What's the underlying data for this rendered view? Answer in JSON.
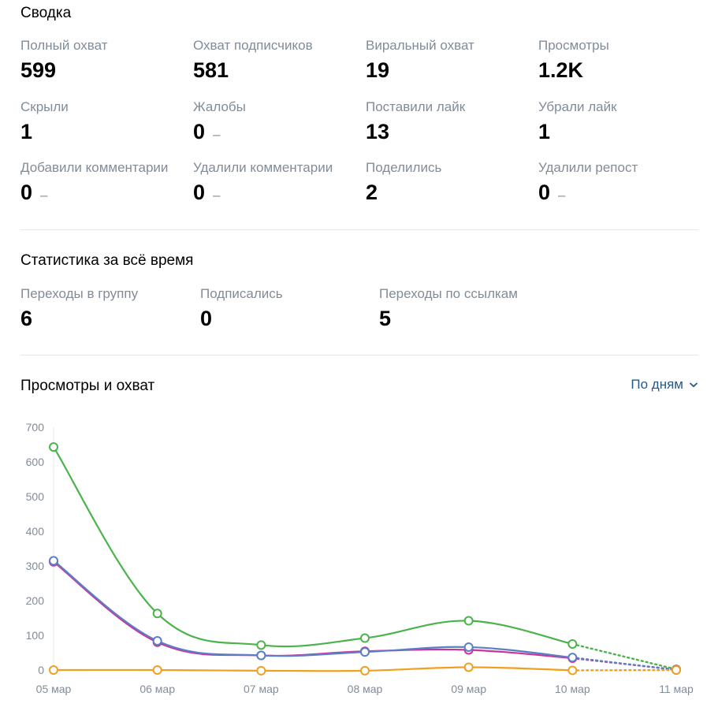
{
  "summary": {
    "title": "Сводка",
    "stats": [
      {
        "label": "Полный охват",
        "value": "599"
      },
      {
        "label": "Охват подписчиков",
        "value": "581"
      },
      {
        "label": "Виральный охват",
        "value": "19"
      },
      {
        "label": "Просмотры",
        "value": "1.2K"
      },
      {
        "label": "Скрыли",
        "value": "1"
      },
      {
        "label": "Жалобы",
        "value": "0",
        "dash": "–"
      },
      {
        "label": "Поставили лайк",
        "value": "13"
      },
      {
        "label": "Убрали лайк",
        "value": "1"
      },
      {
        "label": "Добавили комментарии",
        "value": "0",
        "dash": "–"
      },
      {
        "label": "Удалили комментарии",
        "value": "0",
        "dash": "–"
      },
      {
        "label": "Поделились",
        "value": "2"
      },
      {
        "label": "Удалили репост",
        "value": "0",
        "dash": "–"
      }
    ]
  },
  "alltime": {
    "title": "Статистика за всё время",
    "stats": [
      {
        "label": "Переходы в группу",
        "value": "6"
      },
      {
        "label": "Подписались",
        "value": "0"
      },
      {
        "label": "Переходы по ссылкам",
        "value": "5"
      }
    ]
  },
  "chart_section": {
    "title": "Просмотры и охват",
    "period_label": "По дням"
  },
  "chart_data": {
    "type": "line",
    "title": "",
    "xlabel": "",
    "ylabel": "",
    "categories": [
      "05 мар",
      "06 мар",
      "07 мар",
      "08 мар",
      "09 мар",
      "10 мар",
      "11 мар"
    ],
    "y_ticks": [
      "0",
      "100",
      "200",
      "300",
      "400",
      "500",
      "600",
      "700"
    ],
    "ylim": [
      0,
      700
    ],
    "grid": false,
    "dashed_last_segment": true,
    "series": [
      {
        "color": "#4bb34b",
        "values": [
          643,
          163,
          72,
          92,
          142,
          75,
          2
        ]
      },
      {
        "color": "#cc3399",
        "values": [
          312,
          80,
          42,
          54,
          58,
          34,
          1
        ]
      },
      {
        "color": "#5b7fc7",
        "values": [
          315,
          84,
          42,
          52,
          66,
          36,
          0
        ]
      },
      {
        "color": "#f0a020",
        "values": [
          0,
          0,
          -2,
          -2,
          8,
          -1,
          0
        ]
      }
    ]
  }
}
